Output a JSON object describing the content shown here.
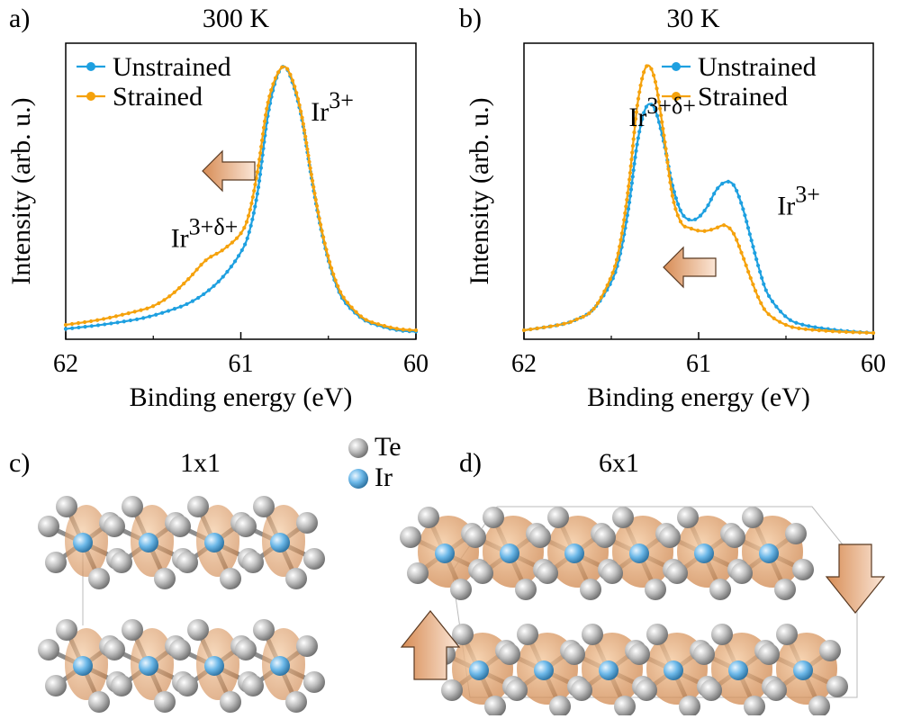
{
  "colors": {
    "unstrained": "#1ea0e0",
    "strained": "#f5a20c",
    "arrow": "#e6a275",
    "te_atom": "#b7b7b7",
    "ir_atom": "#6cb8e8",
    "density": "#d8894a"
  },
  "panels": {
    "a": {
      "label": "a)",
      "title": "300 K"
    },
    "b": {
      "label": "b)",
      "title": "30 K"
    },
    "c": {
      "label": "c)",
      "title": "1x1"
    },
    "d": {
      "label": "d)",
      "title": "6x1"
    }
  },
  "atom_legend": {
    "te": "Te",
    "ir": "Ir"
  },
  "chart_data": [
    {
      "type": "line",
      "title": "300 K",
      "xlabel": "Binding energy (eV)",
      "ylabel": "Intensity (arb. u.)",
      "xlim": [
        62,
        60
      ],
      "x_reversed": true,
      "xticks": [
        "62",
        "61",
        "60"
      ],
      "ylim": [
        0,
        1
      ],
      "legend": "top-left",
      "annotations": [
        {
          "text": "Ir",
          "sup": "3+",
          "x": 60.6,
          "y": 0.8
        },
        {
          "text": "Ir",
          "sup": "3+δ+",
          "x": 61.4,
          "y": 0.33
        }
      ],
      "arrow_direction": "left",
      "series": [
        {
          "name": "Unstrained",
          "x": [
            62.0,
            61.8,
            61.6,
            61.5,
            61.4,
            61.3,
            61.2,
            61.1,
            61.0,
            60.95,
            60.9,
            60.85,
            60.8,
            60.75,
            60.7,
            60.65,
            60.6,
            60.55,
            60.5,
            60.45,
            60.4,
            60.3,
            60.2,
            60.1,
            60.0
          ],
          "y": [
            0.025,
            0.04,
            0.06,
            0.075,
            0.095,
            0.12,
            0.16,
            0.22,
            0.31,
            0.39,
            0.55,
            0.8,
            0.95,
            1.0,
            0.93,
            0.8,
            0.6,
            0.42,
            0.28,
            0.18,
            0.12,
            0.06,
            0.035,
            0.02,
            0.015
          ]
        },
        {
          "name": "Strained",
          "x": [
            62.0,
            61.8,
            61.6,
            61.5,
            61.4,
            61.3,
            61.2,
            61.1,
            61.0,
            60.95,
            60.9,
            60.85,
            60.8,
            60.75,
            60.7,
            60.65,
            60.6,
            60.55,
            60.5,
            60.45,
            60.4,
            60.3,
            60.2,
            60.1,
            60.0
          ],
          "y": [
            0.04,
            0.06,
            0.09,
            0.11,
            0.15,
            0.21,
            0.28,
            0.32,
            0.38,
            0.46,
            0.63,
            0.85,
            0.96,
            1.0,
            0.94,
            0.81,
            0.61,
            0.43,
            0.29,
            0.19,
            0.13,
            0.065,
            0.04,
            0.025,
            0.02
          ]
        }
      ]
    },
    {
      "type": "line",
      "title": "30 K",
      "xlabel": "Binding energy (eV)",
      "ylabel": "Intensity (arb. u.)",
      "xlim": [
        62,
        60
      ],
      "x_reversed": true,
      "xticks": [
        "62",
        "61",
        "60"
      ],
      "ylim": [
        0,
        1
      ],
      "legend": "top-right",
      "annotations": [
        {
          "text": "Ir",
          "sup": "3+δ+",
          "x": 61.4,
          "y": 0.78
        },
        {
          "text": "Ir",
          "sup": "3+",
          "x": 60.55,
          "y": 0.45
        }
      ],
      "arrow_direction": "left",
      "series": [
        {
          "name": "Unstrained",
          "x": [
            62.0,
            61.8,
            61.7,
            61.6,
            61.5,
            61.45,
            61.4,
            61.35,
            61.3,
            61.25,
            61.2,
            61.15,
            61.1,
            61.05,
            61.0,
            60.95,
            60.9,
            60.85,
            60.8,
            60.75,
            60.7,
            60.65,
            60.6,
            60.5,
            60.4,
            60.2,
            60.0
          ],
          "y": [
            0.02,
            0.04,
            0.06,
            0.1,
            0.2,
            0.3,
            0.48,
            0.72,
            0.85,
            0.84,
            0.72,
            0.56,
            0.46,
            0.43,
            0.44,
            0.48,
            0.54,
            0.57,
            0.56,
            0.48,
            0.36,
            0.24,
            0.15,
            0.07,
            0.04,
            0.02,
            0.01
          ]
        },
        {
          "name": "Strained",
          "x": [
            62.0,
            61.8,
            61.7,
            61.6,
            61.5,
            61.45,
            61.4,
            61.35,
            61.3,
            61.25,
            61.2,
            61.15,
            61.1,
            61.05,
            61.0,
            60.95,
            60.9,
            60.85,
            60.8,
            60.75,
            60.7,
            60.65,
            60.6,
            60.5,
            60.4,
            60.2,
            60.0
          ],
          "y": [
            0.02,
            0.04,
            0.06,
            0.1,
            0.22,
            0.34,
            0.56,
            0.86,
            1.0,
            0.95,
            0.75,
            0.52,
            0.42,
            0.4,
            0.39,
            0.39,
            0.4,
            0.41,
            0.38,
            0.3,
            0.21,
            0.13,
            0.08,
            0.04,
            0.025,
            0.015,
            0.01
          ]
        }
      ]
    }
  ]
}
